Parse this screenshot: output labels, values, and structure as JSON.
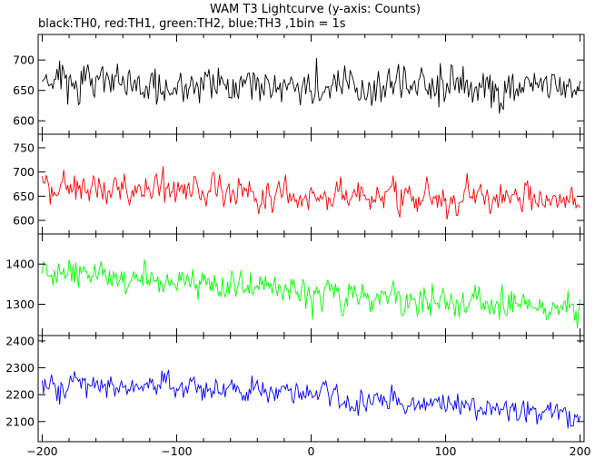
{
  "chart_data": {
    "type": "line",
    "title": "WAM T3 Lightcurve (y-axis: Counts)",
    "subtitle": "black:TH0, red:TH1, green:TH2, blue:TH3 ,1bin = 1s",
    "xlim": [
      -203,
      203
    ],
    "x_ticks": [
      -200,
      -100,
      0,
      100,
      200
    ],
    "x_tick_labels": [
      "−200",
      "−100",
      "0",
      "100",
      "200"
    ],
    "x_step": 1,
    "grid": false,
    "panels": [
      {
        "series": "TH0",
        "color": "#000000",
        "ylim": [
          578,
          742
        ],
        "y_ticks": [
          600,
          650,
          700
        ],
        "baseline": [
          [
            -200,
            667
          ],
          [
            -100,
            662
          ],
          [
            0,
            658
          ],
          [
            100,
            656
          ],
          [
            200,
            656
          ]
        ],
        "noise": 30
      },
      {
        "series": "TH1",
        "color": "#ff0000",
        "ylim": [
          572,
          778
        ],
        "y_ticks": [
          600,
          650,
          700,
          750
        ],
        "baseline": [
          [
            -200,
            672
          ],
          [
            -150,
            663
          ],
          [
            -80,
            668
          ],
          [
            -40,
            654
          ],
          [
            0,
            652
          ],
          [
            100,
            645
          ],
          [
            200,
            640
          ]
        ],
        "noise": 30
      },
      {
        "series": "TH2",
        "color": "#00ff00",
        "ylim": [
          1222,
          1475
        ],
        "y_ticks": [
          1300,
          1400
        ],
        "baseline": [
          [
            -200,
            1380
          ],
          [
            -100,
            1365
          ],
          [
            0,
            1330
          ],
          [
            100,
            1300
          ],
          [
            200,
            1285
          ]
        ],
        "noise": 35
      },
      {
        "series": "TH3",
        "color": "#0000ff",
        "ylim": [
          2025,
          2420
        ],
        "y_ticks": [
          2100,
          2200,
          2300,
          2400
        ],
        "baseline": [
          [
            -200,
            2250
          ],
          [
            -100,
            2230
          ],
          [
            0,
            2190
          ],
          [
            100,
            2160
          ],
          [
            200,
            2120
          ]
        ],
        "noise": 45
      }
    ]
  }
}
